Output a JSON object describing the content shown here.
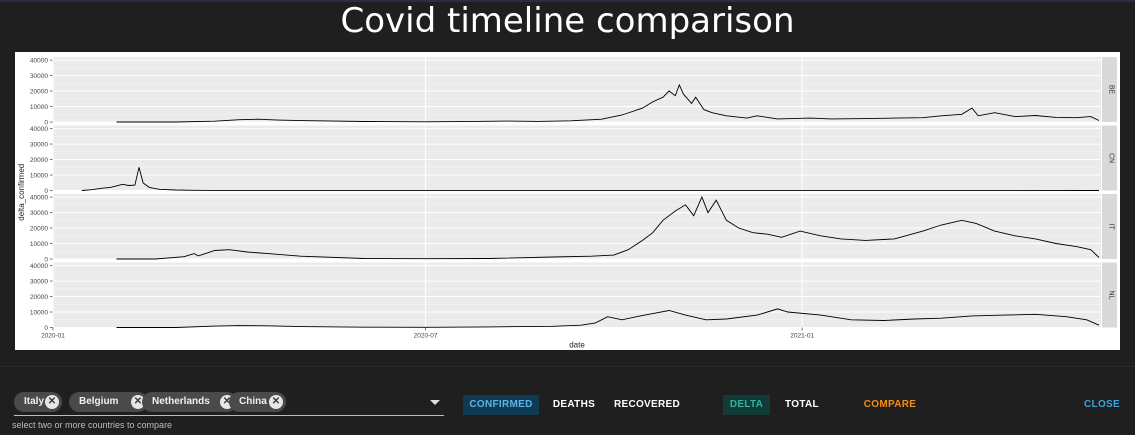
{
  "title": "Covid timeline comparison",
  "controls": {
    "selected_countries": [
      "Italy",
      "Belgium",
      "Netherlands",
      "China"
    ],
    "hint": "select two or more countries to compare",
    "metric_buttons": [
      "CONFIRMED",
      "DEATHS",
      "RECOVERED"
    ],
    "mode_buttons": [
      "DELTA",
      "TOTAL"
    ],
    "compare_label": "COMPARE",
    "close_label": "CLOSE",
    "active_metric": "CONFIRMED",
    "active_mode": "DELTA"
  },
  "colors": {
    "background": "#1f1f1f",
    "active_metric_bg": "#0f3a52",
    "active_metric_text": "#5ab6e8",
    "active_mode_bg": "#123a36",
    "active_mode_text": "#2fb3a0",
    "compare_text": "#f28c1b",
    "close_text": "#3aa3e0"
  },
  "chart_data": {
    "type": "line",
    "xlabel": "date",
    "ylabel": "delta_confirmed",
    "x_ticks": [
      "2020-01",
      "2020-07",
      "2021-01"
    ],
    "y_ticks": [
      0,
      10000,
      20000,
      30000,
      40000
    ],
    "ylim": [
      0,
      42000
    ],
    "xlim": [
      "2020-01-01",
      "2021-05-27"
    ],
    "grid": true,
    "facets": [
      {
        "name": "BE",
        "points": [
          [
            "2020-02-01",
            0
          ],
          [
            "2020-03-01",
            0
          ],
          [
            "2020-03-20",
            500
          ],
          [
            "2020-04-01",
            1500
          ],
          [
            "2020-04-10",
            1800
          ],
          [
            "2020-04-20",
            1200
          ],
          [
            "2020-05-01",
            900
          ],
          [
            "2020-06-01",
            300
          ],
          [
            "2020-07-01",
            150
          ],
          [
            "2020-07-25",
            400
          ],
          [
            "2020-08-10",
            600
          ],
          [
            "2020-08-25",
            400
          ],
          [
            "2020-09-10",
            800
          ],
          [
            "2020-09-25",
            1800
          ],
          [
            "2020-10-05",
            4500
          ],
          [
            "2020-10-15",
            9000
          ],
          [
            "2020-10-20",
            13000
          ],
          [
            "2020-10-25",
            16000
          ],
          [
            "2020-10-28",
            20000
          ],
          [
            "2020-10-31",
            17000
          ],
          [
            "2020-11-02",
            24000
          ],
          [
            "2020-11-04",
            18000
          ],
          [
            "2020-11-08",
            12000
          ],
          [
            "2020-11-10",
            16000
          ],
          [
            "2020-11-14",
            8000
          ],
          [
            "2020-11-18",
            6000
          ],
          [
            "2020-11-25",
            4000
          ],
          [
            "2020-12-05",
            2500
          ],
          [
            "2020-12-10",
            4000
          ],
          [
            "2020-12-20",
            2000
          ],
          [
            "2021-01-05",
            2500
          ],
          [
            "2021-01-15",
            2000
          ],
          [
            "2021-02-01",
            2200
          ],
          [
            "2021-02-15",
            2500
          ],
          [
            "2021-03-01",
            2800
          ],
          [
            "2021-03-10",
            4000
          ],
          [
            "2021-03-20",
            5000
          ],
          [
            "2021-03-25",
            9000
          ],
          [
            "2021-03-28",
            4000
          ],
          [
            "2021-04-05",
            6000
          ],
          [
            "2021-04-15",
            3500
          ],
          [
            "2021-04-25",
            4200
          ],
          [
            "2021-05-05",
            3000
          ],
          [
            "2021-05-15",
            2800
          ],
          [
            "2021-05-22",
            3500
          ],
          [
            "2021-05-26",
            1000
          ]
        ]
      },
      {
        "name": "CN",
        "points": [
          [
            "2020-01-15",
            0
          ],
          [
            "2020-01-20",
            500
          ],
          [
            "2020-01-25",
            1500
          ],
          [
            "2020-01-29",
            2000
          ],
          [
            "2020-02-01",
            3000
          ],
          [
            "2020-02-04",
            4000
          ],
          [
            "2020-02-07",
            3200
          ],
          [
            "2020-02-10",
            3500
          ],
          [
            "2020-02-12",
            15000
          ],
          [
            "2020-02-14",
            5000
          ],
          [
            "2020-02-17",
            2000
          ],
          [
            "2020-02-22",
            800
          ],
          [
            "2020-03-01",
            300
          ],
          [
            "2020-03-10",
            100
          ],
          [
            "2020-03-20",
            50
          ],
          [
            "2020-04-01",
            50
          ],
          [
            "2020-08-01",
            50
          ],
          [
            "2021-05-26",
            30
          ]
        ]
      },
      {
        "name": "IT",
        "points": [
          [
            "2020-02-01",
            0
          ],
          [
            "2020-02-20",
            0
          ],
          [
            "2020-03-05",
            1500
          ],
          [
            "2020-03-10",
            3500
          ],
          [
            "2020-03-12",
            2000
          ],
          [
            "2020-03-20",
            5500
          ],
          [
            "2020-03-27",
            6000
          ],
          [
            "2020-04-05",
            4500
          ],
          [
            "2020-04-15",
            3500
          ],
          [
            "2020-05-01",
            1800
          ],
          [
            "2020-06-01",
            300
          ],
          [
            "2020-07-01",
            200
          ],
          [
            "2020-08-01",
            300
          ],
          [
            "2020-09-01",
            1300
          ],
          [
            "2020-09-20",
            1800
          ],
          [
            "2020-10-01",
            2500
          ],
          [
            "2020-10-08",
            6000
          ],
          [
            "2020-10-15",
            12000
          ],
          [
            "2020-10-20",
            17000
          ],
          [
            "2020-10-25",
            25000
          ],
          [
            "2020-10-31",
            31000
          ],
          [
            "2020-11-05",
            35000
          ],
          [
            "2020-11-09",
            28000
          ],
          [
            "2020-11-13",
            40000
          ],
          [
            "2020-11-16",
            30000
          ],
          [
            "2020-11-20",
            38000
          ],
          [
            "2020-11-25",
            25000
          ],
          [
            "2020-12-01",
            20000
          ],
          [
            "2020-12-08",
            17000
          ],
          [
            "2020-12-15",
            16000
          ],
          [
            "2020-12-22",
            14000
          ],
          [
            "2020-12-31",
            18000
          ],
          [
            "2021-01-10",
            15000
          ],
          [
            "2021-01-20",
            13000
          ],
          [
            "2021-02-01",
            12000
          ],
          [
            "2021-02-15",
            13000
          ],
          [
            "2021-03-01",
            18000
          ],
          [
            "2021-03-10",
            22000
          ],
          [
            "2021-03-20",
            25000
          ],
          [
            "2021-03-27",
            23000
          ],
          [
            "2021-04-05",
            18000
          ],
          [
            "2021-04-15",
            15000
          ],
          [
            "2021-04-25",
            13000
          ],
          [
            "2021-05-05",
            10000
          ],
          [
            "2021-05-15",
            8000
          ],
          [
            "2021-05-22",
            6000
          ],
          [
            "2021-05-26",
            1000
          ]
        ]
      },
      {
        "name": "NL",
        "points": [
          [
            "2020-02-01",
            0
          ],
          [
            "2020-03-01",
            0
          ],
          [
            "2020-03-20",
            900
          ],
          [
            "2020-04-01",
            1200
          ],
          [
            "2020-04-15",
            1100
          ],
          [
            "2020-05-01",
            600
          ],
          [
            "2020-06-01",
            200
          ],
          [
            "2020-07-01",
            100
          ],
          [
            "2020-08-01",
            400
          ],
          [
            "2020-09-01",
            800
          ],
          [
            "2020-09-15",
            1500
          ],
          [
            "2020-09-22",
            3000
          ],
          [
            "2020-09-28",
            7000
          ],
          [
            "2020-10-05",
            5000
          ],
          [
            "2020-10-12",
            7000
          ],
          [
            "2020-10-20",
            9000
          ],
          [
            "2020-10-28",
            11000
          ],
          [
            "2020-11-05",
            8000
          ],
          [
            "2020-11-15",
            5000
          ],
          [
            "2020-11-25",
            5500
          ],
          [
            "2020-12-10",
            8000
          ],
          [
            "2020-12-20",
            12000
          ],
          [
            "2020-12-25",
            10000
          ],
          [
            "2021-01-10",
            8000
          ],
          [
            "2021-01-25",
            5000
          ],
          [
            "2021-02-10",
            4500
          ],
          [
            "2021-02-25",
            5500
          ],
          [
            "2021-03-10",
            6000
          ],
          [
            "2021-03-25",
            7500
          ],
          [
            "2021-04-10",
            8000
          ],
          [
            "2021-04-25",
            8500
          ],
          [
            "2021-05-10",
            7000
          ],
          [
            "2021-05-20",
            5000
          ],
          [
            "2021-05-26",
            1500
          ]
        ]
      }
    ]
  }
}
